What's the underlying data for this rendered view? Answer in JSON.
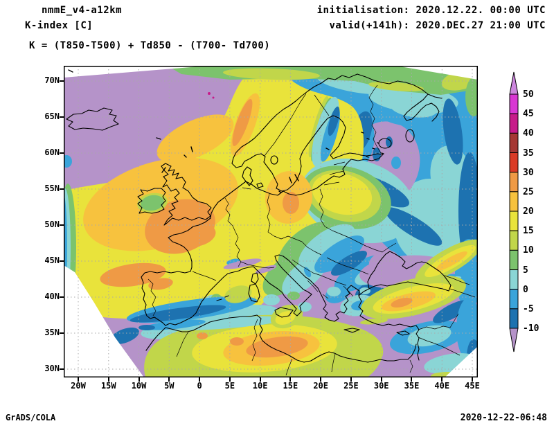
{
  "header": {
    "model": "nmmE_v4-a12km",
    "variable": "K-index [C]",
    "init_label": "initialisation: 2020.12.22. 00:00 UTC",
    "valid_label": "valid(+141h): 2020.DEC.27 21:00 UTC",
    "formula": "K = (T850-T500) + Td850 - (T700- Td700)"
  },
  "footer": {
    "left": "GrADS/COLA",
    "right": "2020-12-22-06:48"
  },
  "axes": {
    "lat_ticks": [
      "70N",
      "65N",
      "60N",
      "55N",
      "50N",
      "45N",
      "40N",
      "35N",
      "30N"
    ],
    "lon_ticks": [
      "20W",
      "15W",
      "10W",
      "5W",
      "0",
      "5E",
      "10E",
      "15E",
      "20E",
      "25E",
      "30E",
      "35E",
      "40E",
      "45E"
    ]
  },
  "colorbar": {
    "tick_labels": [
      "50",
      "45",
      "40",
      "35",
      "30",
      "25",
      "20",
      "15",
      "10",
      "5",
      "0",
      "-5",
      "-10"
    ],
    "top_arrow_color": "#cc86dd",
    "bottom_arrow_color": "#b593c9",
    "block_colors_top_to_bottom": [
      "#d937d3",
      "#c71b8a",
      "#a53733",
      "#da3b26",
      "#ef9a45",
      "#f7c23e",
      "#e9e33b",
      "#c1d64a",
      "#7cc36d",
      "#8ad5d5",
      "#3aa4da",
      "#1d72b0"
    ]
  },
  "chart_data": {
    "type": "filled-contour-map",
    "title": "K-index [C]",
    "model": "nmmE_v4-a12km",
    "extent": {
      "lon_min_deg": -20,
      "lon_max_deg": 45,
      "lat_min_deg": 30,
      "lat_max_deg": 70
    },
    "contour_levels_degC": [
      -10,
      -5,
      0,
      5,
      10,
      15,
      20,
      25,
      30,
      35,
      40,
      45,
      50
    ],
    "palette": {
      "below_-10": "#b593c9",
      "-10_to_-5": "#1d72b0",
      "-5_to_0": "#3aa4da",
      "0_to_5": "#8ad5d5",
      "5_to_10": "#7cc36d",
      "10_to_15": "#c1d64a",
      "15_to_20": "#e9e33b",
      "20_to_25": "#f7c23e",
      "25_to_30": "#ef9a45",
      "30_to_35": "#da3b26",
      "35_to_40": "#a53733",
      "40_to_45": "#c71b8a",
      "45_to_50": "#d937d3",
      "above_50": "#cc86dd"
    },
    "grid": {
      "lon_step_deg": 5,
      "lat_step_deg": 5,
      "style": "dotted"
    },
    "features": [
      {
        "area": "NE Atlantic around Iceland and SW of Iberia",
        "k_index": "< -10"
      },
      {
        "area": "British Isles, Bay of Biscay, North Sea, France",
        "k_index": "20 to 30"
      },
      {
        "area": "Southern Norway and Sweden",
        "k_index": "20 to 30"
      },
      {
        "area": "Baltic states / NW Russia tongue",
        "k_index": "15 to 20"
      },
      {
        "area": "Finland, White Sea and NW Russia",
        "k_index": "-10 to 5 with pockets < -10"
      },
      {
        "area": "Central Europe band Poland to Balkans",
        "k_index": "-10 to 10 decreasing SE"
      },
      {
        "area": "Mediterranean Sea, Black Sea, SE Europe",
        "k_index": "< -10"
      },
      {
        "area": "NW Africa coast Algeria-Tunisia-Libya",
        "k_index": "10 to 30, local max ~30"
      },
      {
        "area": "Turkey / Anatolia diagonal band",
        "k_index": "10 to 25"
      },
      {
        "area": "Tiny spots near Norwegian coast",
        "k_index": "> 40"
      }
    ]
  }
}
